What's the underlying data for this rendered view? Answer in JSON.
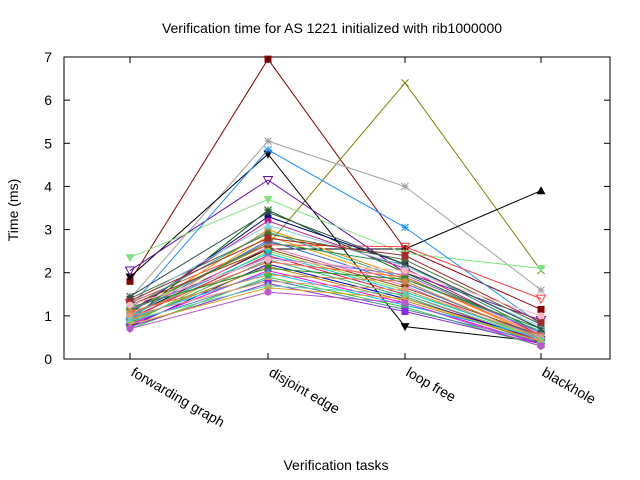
{
  "chart_data": {
    "type": "line",
    "title": "Verification time for AS 1221 initialized with rib1000000",
    "xlabel": "Verification tasks",
    "ylabel": "Time (ms)",
    "categories": [
      "forwarding graph",
      "disjoint edge",
      "loop free",
      "blackhole"
    ],
    "ylim": [
      0,
      7
    ],
    "yticks": [
      0,
      1,
      2,
      3,
      4,
      5,
      6,
      7
    ],
    "grid": false,
    "legend": "none",
    "series": [
      {
        "values": [
          1.8,
          6.95,
          2.55,
          1.15
        ],
        "color": "#8b0000",
        "marker": "square"
      },
      {
        "values": [
          1.15,
          2.65,
          6.4,
          2.05
        ],
        "color": "#808000",
        "marker": "x"
      },
      {
        "values": [
          1.4,
          5.05,
          4.0,
          1.6
        ],
        "color": "#a0a0a0",
        "marker": "star"
      },
      {
        "values": [
          1.9,
          4.75,
          0.75,
          0.4
        ],
        "color": "#000000",
        "marker": "triangle-down"
      },
      {
        "values": [
          1.0,
          2.55,
          2.55,
          3.9
        ],
        "color": "#000000",
        "marker": "triangle"
      },
      {
        "values": [
          2.05,
          4.15,
          2.0,
          0.9
        ],
        "color": "#6a0dad",
        "marker": "triangle-down-open"
      },
      {
        "values": [
          2.35,
          3.7,
          2.45,
          2.1
        ],
        "color": "#7fe37f",
        "marker": "triangle-down"
      },
      {
        "values": [
          1.2,
          4.85,
          3.05,
          0.8
        ],
        "color": "#1e90ff",
        "marker": "star"
      },
      {
        "values": [
          1.3,
          2.65,
          2.6,
          1.4
        ],
        "color": "#ff4040",
        "marker": "triangle-down-open"
      },
      {
        "values": [
          0.9,
          3.45,
          2.0,
          0.6
        ],
        "color": "#006400",
        "marker": "star"
      },
      {
        "values": [
          1.05,
          3.3,
          2.2,
          0.7
        ],
        "color": "#000080",
        "marker": "circle"
      },
      {
        "values": [
          1.1,
          3.2,
          2.1,
          0.55
        ],
        "color": "#c71585",
        "marker": "circle"
      },
      {
        "values": [
          0.95,
          3.0,
          1.9,
          0.5
        ],
        "color": "#ff8c00",
        "marker": "square"
      },
      {
        "values": [
          1.2,
          2.95,
          1.85,
          0.65
        ],
        "color": "#20b2aa",
        "marker": "triangle"
      },
      {
        "values": [
          0.85,
          2.85,
          1.8,
          0.45
        ],
        "color": "#ffa500",
        "marker": "circle"
      },
      {
        "values": [
          1.0,
          2.75,
          1.75,
          0.5
        ],
        "color": "#4169e1",
        "marker": "triangle"
      },
      {
        "values": [
          1.1,
          2.7,
          2.2,
          0.6
        ],
        "color": "#2e8b57",
        "marker": "x"
      },
      {
        "values": [
          0.9,
          2.6,
          1.7,
          0.4
        ],
        "color": "#ff69b4",
        "marker": "star"
      },
      {
        "values": [
          1.25,
          2.55,
          1.65,
          0.55
        ],
        "color": "#8b4513",
        "marker": "triangle-down"
      },
      {
        "values": [
          0.8,
          2.5,
          1.6,
          0.45
        ],
        "color": "#9acd32",
        "marker": "circle"
      },
      {
        "values": [
          1.0,
          2.45,
          1.55,
          0.5
        ],
        "color": "#00ced1",
        "marker": "square"
      },
      {
        "values": [
          0.95,
          2.4,
          1.5,
          0.4
        ],
        "color": "#dc143c",
        "marker": "x"
      },
      {
        "values": [
          1.15,
          2.35,
          1.95,
          0.6
        ],
        "color": "#9370db",
        "marker": "circle"
      },
      {
        "values": [
          0.85,
          2.3,
          1.45,
          0.35
        ],
        "color": "#3cb371",
        "marker": "triangle"
      },
      {
        "values": [
          1.05,
          2.25,
          1.9,
          0.55
        ],
        "color": "#ff6347",
        "marker": "star"
      },
      {
        "values": [
          0.75,
          2.2,
          1.4,
          0.45
        ],
        "color": "#0000cd",
        "marker": "triangle-down"
      },
      {
        "values": [
          0.9,
          2.15,
          1.35,
          0.4
        ],
        "color": "#b8860b",
        "marker": "circle"
      },
      {
        "values": [
          1.2,
          2.1,
          1.85,
          0.7
        ],
        "color": "#228b22",
        "marker": "square"
      },
      {
        "values": [
          0.8,
          2.05,
          1.3,
          0.35
        ],
        "color": "#ff00ff",
        "marker": "x"
      },
      {
        "values": [
          0.95,
          2.0,
          1.25,
          0.5
        ],
        "color": "#00bfff",
        "marker": "triangle"
      },
      {
        "values": [
          1.1,
          1.95,
          1.8,
          0.45
        ],
        "color": "#cd853f",
        "marker": "circle"
      },
      {
        "values": [
          0.7,
          1.9,
          1.2,
          0.3
        ],
        "color": "#32cd32",
        "marker": "triangle-down"
      },
      {
        "values": [
          0.85,
          1.85,
          1.15,
          0.4
        ],
        "color": "#4682b4",
        "marker": "star"
      },
      {
        "values": [
          1.0,
          1.8,
          1.6,
          0.5
        ],
        "color": "#e9967a",
        "marker": "circle"
      },
      {
        "values": [
          0.75,
          1.75,
          1.1,
          0.35
        ],
        "color": "#8a2be2",
        "marker": "square"
      },
      {
        "values": [
          0.9,
          1.7,
          1.5,
          0.45
        ],
        "color": "#66cdaa",
        "marker": "triangle"
      },
      {
        "values": [
          0.8,
          1.65,
          1.4,
          0.4
        ],
        "color": "#daa520",
        "marker": "x"
      },
      {
        "values": [
          0.7,
          1.55,
          1.3,
          0.3
        ],
        "color": "#ba55d3",
        "marker": "circle"
      },
      {
        "values": [
          1.4,
          2.9,
          2.3,
          0.8
        ],
        "color": "#556b2f",
        "marker": "circle"
      },
      {
        "values": [
          1.3,
          3.1,
          2.15,
          0.75
        ],
        "color": "#87ceeb",
        "marker": "triangle"
      },
      {
        "values": [
          1.35,
          2.8,
          2.4,
          0.85
        ],
        "color": "#a52a2a",
        "marker": "square"
      },
      {
        "values": [
          1.25,
          2.3,
          2.05,
          1.0
        ],
        "color": "#ffb6c1",
        "marker": "circle"
      },
      {
        "values": [
          1.45,
          3.4,
          2.2,
          0.7
        ],
        "color": "#2f4f4f",
        "marker": "star"
      }
    ]
  }
}
